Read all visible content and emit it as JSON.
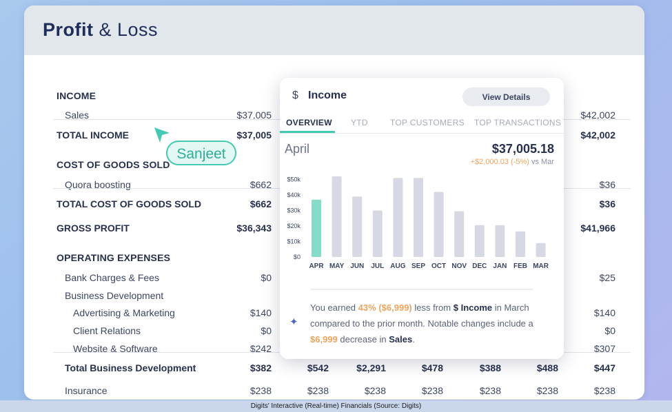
{
  "title_bold": "Profit",
  "title_rest": "& Loss",
  "col_x": [
    394,
    477,
    560,
    643,
    727,
    810,
    893
  ],
  "rows": [
    {
      "label": "INCOME",
      "type": "header",
      "indent": 0,
      "y": 123,
      "values": []
    },
    {
      "label": "Sales",
      "type": "normal",
      "indent": 1,
      "y": 151,
      "values": [
        "$37,005",
        "",
        "",
        "",
        "",
        "",
        "$42,002"
      ]
    },
    {
      "label": "TOTAL INCOME",
      "type": "bold",
      "indent": 0,
      "y": 180,
      "values": [
        "$37,005",
        "",
        "",
        "",
        "",
        "",
        "$42,002"
      ]
    },
    {
      "label": "COST OF GOODS SOLD",
      "type": "header",
      "indent": 0,
      "y": 223,
      "values": []
    },
    {
      "label": "Quora boosting",
      "type": "normal",
      "indent": 1,
      "y": 252,
      "values": [
        "$662",
        "",
        "",
        "",
        "",
        "",
        "$36"
      ]
    },
    {
      "label": "TOTAL COST OF GOODS SOLD",
      "type": "bold",
      "indent": 0,
      "y": 280,
      "values": [
        "$662",
        "",
        "",
        "",
        "",
        "",
        "$36"
      ]
    },
    {
      "label": "GROSS PROFIT",
      "type": "bold",
      "indent": 0,
      "y": 315,
      "values": [
        "$36,343",
        "",
        "",
        "",
        "",
        "",
        "$41,966"
      ]
    },
    {
      "label": "OPERATING EXPENSES",
      "type": "header",
      "indent": 0,
      "y": 358,
      "values": []
    },
    {
      "label": "Bank Charges & Fees",
      "type": "normal",
      "indent": 1,
      "y": 387,
      "values": [
        "$0",
        "",
        "",
        "",
        "",
        "",
        "$25"
      ]
    },
    {
      "label": "Business Development",
      "type": "normal",
      "indent": 1,
      "y": 413,
      "values": []
    },
    {
      "label": "Advertising & Marketing",
      "type": "normal",
      "indent": 2,
      "y": 438,
      "values": [
        "$140",
        "",
        "",
        "",
        "",
        "",
        "$140"
      ]
    },
    {
      "label": "Client Relations",
      "type": "normal",
      "indent": 2,
      "y": 464,
      "values": [
        "$0",
        "",
        "",
        "",
        "",
        "",
        "$0"
      ]
    },
    {
      "label": "Website & Software",
      "type": "normal",
      "indent": 2,
      "y": 490,
      "values": [
        "$242",
        "",
        "",
        "",
        "",
        "",
        "$307"
      ]
    },
    {
      "label": "Total Business Development",
      "type": "bold",
      "indent": 1,
      "y": 518,
      "values": [
        "$382",
        "$542",
        "$2,291",
        "$478",
        "$388",
        "$488",
        "$447"
      ]
    },
    {
      "label": "Insurance",
      "type": "normal",
      "indent": 1,
      "y": 551,
      "values": [
        "$238",
        "$238",
        "$238",
        "$238",
        "$238",
        "$238",
        "$238"
      ]
    }
  ],
  "dividers": [
    173,
    273,
    511
  ],
  "collaborator": "Sanjeet",
  "popup": {
    "icon": "$",
    "title": "Income",
    "view_details": "View Details",
    "tabs": [
      "OVERVIEW",
      "YTD",
      "TOP CUSTOMERS",
      "TOP TRANSACTIONS"
    ],
    "month": "April",
    "amount": "$37,005.18",
    "change": "+$2,000.03 (-5%)",
    "change_suffix": "vs Mar",
    "insight": {
      "p1": "You earned",
      "pct": "43%",
      "amt1_open": "(",
      "amt1": "$6,999",
      "amt1_close": ")",
      "p2": "less from",
      "icon": "$",
      "category": "Income",
      "p3": "in March compared to the prior month. Notable changes include a",
      "amt2": "$6,999",
      "p4": "decrease in",
      "target": "Sales",
      "end": "."
    }
  },
  "chart_data": {
    "type": "bar",
    "categories": [
      "APR",
      "MAY",
      "JUN",
      "JUL",
      "AUG",
      "SEP",
      "OCT",
      "NOV",
      "DEC",
      "JAN",
      "FEB",
      "MAR"
    ],
    "values": [
      37005,
      52000,
      39000,
      30000,
      51000,
      51000,
      42000,
      29500,
      20500,
      20500,
      16500,
      9000
    ],
    "yticks": [
      "$50k",
      "$40k",
      "$30k",
      "$20k",
      "$10k",
      "$0"
    ],
    "ylim": [
      0,
      52000
    ],
    "highlight_index": 0,
    "colors": {
      "highlight": "#86dcc9",
      "bar": "#d6d9e3"
    }
  },
  "caption": "Digits' Interactive (Real-time) Financials (Source: Digits)"
}
